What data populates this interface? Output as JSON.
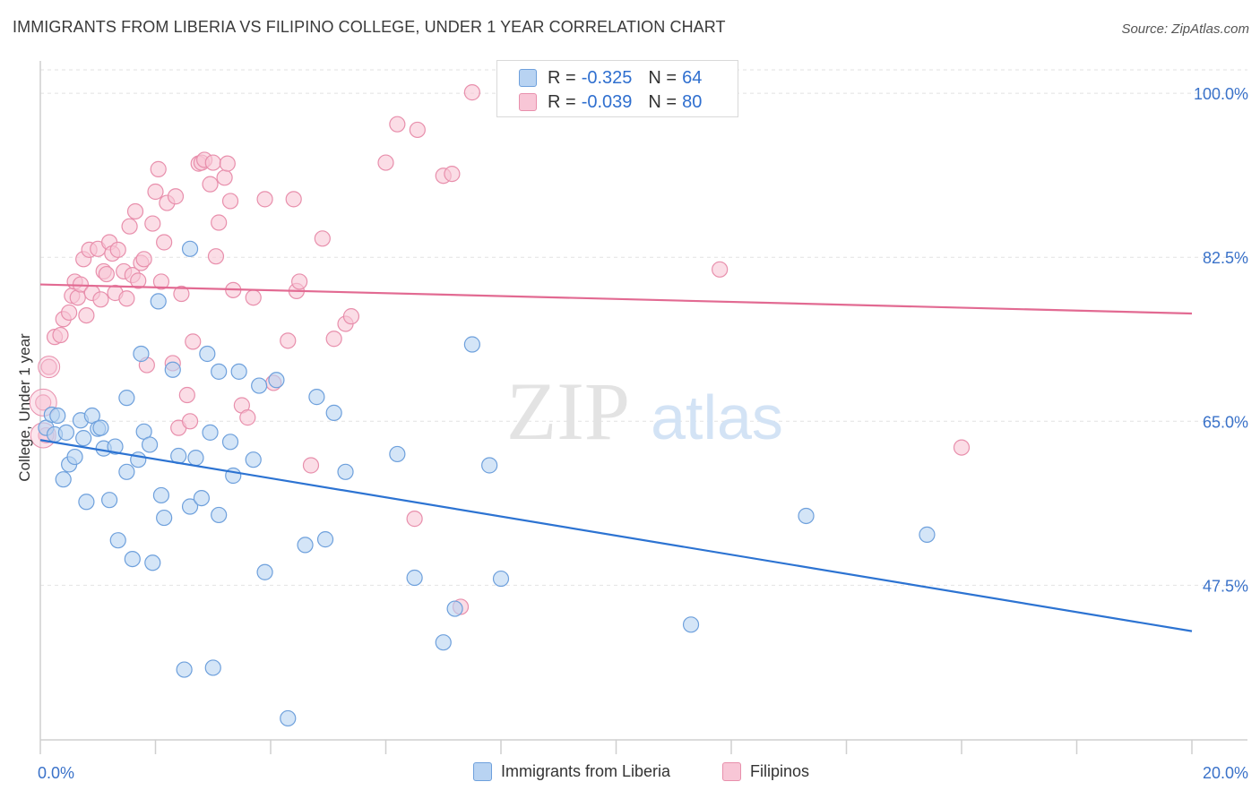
{
  "title": "IMMIGRANTS FROM LIBERIA VS FILIPINO COLLEGE, UNDER 1 YEAR CORRELATION CHART",
  "source": "Source: ZipAtlas.com",
  "watermark": {
    "zip": "ZIP",
    "atlas": "atlas"
  },
  "colors": {
    "blue_fill": "#b8d3f2",
    "blue_stroke": "#6ea0dc",
    "blue_line": "#2c73d2",
    "pink_fill": "#f8c6d6",
    "pink_stroke": "#e88fac",
    "pink_line": "#e26a92",
    "axis_text": "#3a72c9",
    "grid": "#e2e2e2"
  },
  "legend": {
    "rows": [
      {
        "r_label": "R =",
        "r_value": "-0.325",
        "n_label": "N =",
        "n_value": "64"
      },
      {
        "r_label": "R =",
        "r_value": "-0.039",
        "n_label": "N =",
        "n_value": "80"
      }
    ]
  },
  "bottom_legend": [
    "Immigrants from Liberia",
    "Filipinos"
  ],
  "chart_data": {
    "type": "scatter",
    "title": "IMMIGRANTS FROM LIBERIA VS FILIPINO COLLEGE, UNDER 1 YEAR CORRELATION CHART",
    "xlabel": "",
    "ylabel": "College, Under 1 year",
    "xlim": [
      0,
      20
    ],
    "ylim": [
      31,
      102.5
    ],
    "x_tick_labels": [
      "0.0%",
      "20.0%"
    ],
    "y_ticks": [
      47.5,
      65.0,
      82.5,
      100.0
    ],
    "y_tick_labels": [
      "47.5%",
      "65.0%",
      "82.5%",
      "100.0%"
    ],
    "series": [
      {
        "name": "Immigrants from Liberia",
        "color": "blue",
        "trend": {
          "x": [
            0,
            20
          ],
          "y": [
            63.0,
            42.6
          ]
        },
        "points": [
          [
            0.1,
            64.3
          ],
          [
            0.2,
            65.7
          ],
          [
            0.25,
            63.6
          ],
          [
            0.3,
            65.6
          ],
          [
            0.4,
            58.8
          ],
          [
            0.45,
            63.8
          ],
          [
            0.5,
            60.4
          ],
          [
            0.6,
            61.2
          ],
          [
            0.7,
            65.1
          ],
          [
            0.75,
            63.2
          ],
          [
            0.8,
            56.4
          ],
          [
            0.9,
            65.6
          ],
          [
            1.0,
            64.2
          ],
          [
            1.05,
            64.3
          ],
          [
            1.1,
            62.1
          ],
          [
            1.2,
            56.6
          ],
          [
            1.3,
            62.3
          ],
          [
            1.35,
            52.3
          ],
          [
            1.5,
            67.5
          ],
          [
            1.5,
            59.6
          ],
          [
            1.6,
            50.3
          ],
          [
            1.7,
            60.9
          ],
          [
            1.75,
            72.2
          ],
          [
            1.8,
            63.9
          ],
          [
            1.9,
            62.5
          ],
          [
            1.95,
            49.9
          ],
          [
            2.05,
            77.8
          ],
          [
            2.1,
            57.1
          ],
          [
            2.15,
            54.7
          ],
          [
            2.3,
            70.5
          ],
          [
            2.4,
            61.3
          ],
          [
            2.5,
            38.5
          ],
          [
            2.6,
            83.4
          ],
          [
            2.6,
            55.9
          ],
          [
            2.7,
            61.1
          ],
          [
            2.8,
            56.8
          ],
          [
            2.9,
            72.2
          ],
          [
            2.95,
            63.8
          ],
          [
            3.0,
            38.7
          ],
          [
            3.1,
            55.0
          ],
          [
            3.1,
            70.3
          ],
          [
            3.3,
            62.8
          ],
          [
            3.35,
            59.2
          ],
          [
            3.45,
            70.3
          ],
          [
            3.7,
            60.9
          ],
          [
            3.8,
            68.8
          ],
          [
            3.9,
            48.9
          ],
          [
            4.1,
            69.4
          ],
          [
            4.3,
            33.3
          ],
          [
            4.6,
            51.8
          ],
          [
            4.8,
            67.6
          ],
          [
            4.95,
            52.4
          ],
          [
            5.1,
            65.9
          ],
          [
            5.3,
            59.6
          ],
          [
            6.2,
            61.5
          ],
          [
            6.5,
            48.3
          ],
          [
            7.0,
            41.4
          ],
          [
            7.2,
            45.0
          ],
          [
            7.5,
            73.2
          ],
          [
            7.8,
            60.3
          ],
          [
            8.0,
            48.2
          ],
          [
            11.3,
            43.3
          ],
          [
            13.3,
            54.9
          ],
          [
            15.4,
            52.9
          ]
        ]
      },
      {
        "name": "Filipinos",
        "color": "pink",
        "trend": {
          "x": [
            0,
            20
          ],
          "y": [
            79.6,
            76.5
          ]
        },
        "points": [
          [
            0.05,
            67.0
          ],
          [
            0.1,
            63.5
          ],
          [
            0.15,
            70.8
          ],
          [
            0.25,
            74.0
          ],
          [
            0.35,
            74.2
          ],
          [
            0.4,
            75.9
          ],
          [
            0.5,
            76.6
          ],
          [
            0.55,
            78.4
          ],
          [
            0.6,
            79.9
          ],
          [
            0.65,
            78.2
          ],
          [
            0.7,
            79.6
          ],
          [
            0.75,
            82.3
          ],
          [
            0.8,
            76.3
          ],
          [
            0.85,
            83.3
          ],
          [
            0.9,
            78.7
          ],
          [
            1.0,
            83.4
          ],
          [
            1.05,
            78.0
          ],
          [
            1.1,
            81.0
          ],
          [
            1.15,
            80.7
          ],
          [
            1.2,
            84.1
          ],
          [
            1.25,
            82.9
          ],
          [
            1.3,
            78.7
          ],
          [
            1.35,
            83.3
          ],
          [
            1.45,
            81.0
          ],
          [
            1.5,
            78.1
          ],
          [
            1.55,
            85.8
          ],
          [
            1.6,
            80.6
          ],
          [
            1.65,
            87.4
          ],
          [
            1.7,
            80.0
          ],
          [
            1.75,
            81.9
          ],
          [
            1.8,
            82.3
          ],
          [
            1.85,
            71.0
          ],
          [
            1.95,
            86.1
          ],
          [
            2.0,
            89.5
          ],
          [
            2.05,
            91.9
          ],
          [
            2.1,
            79.9
          ],
          [
            2.15,
            84.1
          ],
          [
            2.2,
            88.3
          ],
          [
            2.3,
            71.2
          ],
          [
            2.35,
            89.0
          ],
          [
            2.4,
            64.3
          ],
          [
            2.45,
            78.6
          ],
          [
            2.55,
            67.8
          ],
          [
            2.6,
            65.0
          ],
          [
            2.65,
            73.5
          ],
          [
            2.75,
            92.5
          ],
          [
            2.8,
            92.6
          ],
          [
            2.85,
            92.9
          ],
          [
            2.95,
            90.3
          ],
          [
            3.0,
            92.6
          ],
          [
            3.05,
            82.6
          ],
          [
            3.1,
            86.2
          ],
          [
            3.2,
            91.0
          ],
          [
            3.25,
            92.5
          ],
          [
            3.3,
            88.5
          ],
          [
            3.35,
            79.0
          ],
          [
            3.5,
            66.7
          ],
          [
            3.6,
            65.4
          ],
          [
            3.7,
            78.2
          ],
          [
            3.9,
            88.7
          ],
          [
            4.05,
            69.1
          ],
          [
            4.3,
            73.6
          ],
          [
            4.4,
            88.7
          ],
          [
            4.45,
            78.9
          ],
          [
            4.5,
            79.9
          ],
          [
            4.7,
            60.3
          ],
          [
            4.9,
            84.5
          ],
          [
            5.1,
            73.8
          ],
          [
            5.3,
            75.4
          ],
          [
            5.4,
            76.2
          ],
          [
            6.0,
            92.6
          ],
          [
            6.2,
            96.7
          ],
          [
            6.5,
            54.6
          ],
          [
            6.55,
            96.1
          ],
          [
            7.0,
            91.2
          ],
          [
            7.15,
            91.4
          ],
          [
            7.3,
            45.2
          ],
          [
            7.5,
            100.1
          ],
          [
            11.8,
            81.2
          ],
          [
            16.0,
            62.2
          ]
        ]
      }
    ]
  }
}
